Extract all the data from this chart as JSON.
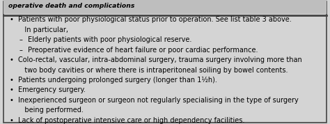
{
  "header_text": "operative death and complications",
  "bg_color": "#d4d4d4",
  "header_bg": "#bebebe",
  "border_color": "#444444",
  "text_color": "#000000",
  "font_size": 7.0,
  "line_items": [
    [
      0.0,
      "•",
      "Patients with poor physiological status prior to operation. See list table 3 above."
    ],
    [
      0.0,
      "",
      "   In particular,"
    ],
    [
      0.03,
      "–",
      "Elderly patients with poor physiological reserve."
    ],
    [
      0.03,
      "–",
      "Preoperative evidence of heart failure or poor cardiac performance."
    ],
    [
      0.0,
      "•",
      "Colo-rectal, vascular, intra-abdominal surgery, trauma surgery involving more than"
    ],
    [
      0.0,
      "",
      "   two body cavities or where there is intraperitoneal soiling by bowel contents."
    ],
    [
      0.0,
      "•",
      "Patients undergoing prolonged surgery (longer than 1½h)."
    ],
    [
      0.0,
      "•",
      "Emergency surgery."
    ],
    [
      0.0,
      "•",
      "Inexperienced surgeon or surgeon not regularly specialising in the type of surgery"
    ],
    [
      0.0,
      "",
      "   being performed."
    ],
    [
      0.0,
      "•",
      "Lack of postoperative intensive care or high dependency facilities."
    ]
  ]
}
